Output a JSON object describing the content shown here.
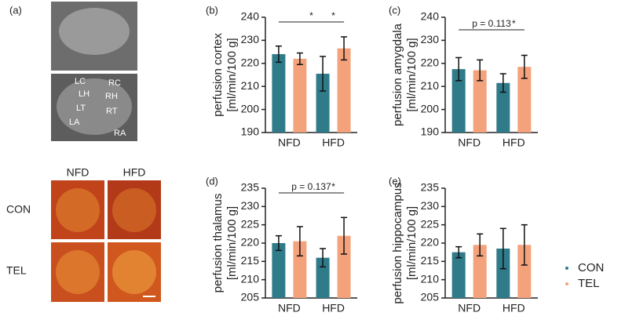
{
  "panel_a": {
    "label": "(a)",
    "regions": [
      "LC",
      "RC",
      "LH",
      "RH",
      "LT",
      "RT",
      "LA",
      "RA"
    ],
    "columns": [
      "NFD",
      "HFD"
    ],
    "rows": [
      "CON",
      "TEL"
    ]
  },
  "chart_data": [
    {
      "type": "bar",
      "label": "(b)",
      "ylabel": [
        "perfusion cortex",
        "[ml/min/100 g]"
      ],
      "categories": [
        "NFD",
        "HFD"
      ],
      "series": [
        {
          "name": "CON",
          "color": "#2f7b8a",
          "values": [
            224,
            215.5
          ],
          "errors": [
            3.5,
            7.5
          ]
        },
        {
          "name": "TEL",
          "color": "#f4a27c",
          "values": [
            222,
            226.5
          ],
          "errors": [
            2.5,
            5
          ]
        }
      ],
      "ylim": [
        190,
        240
      ],
      "yticks": [
        190,
        200,
        210,
        220,
        230,
        240
      ],
      "annotations": [
        "*",
        "*"
      ]
    },
    {
      "type": "bar",
      "label": "(c)",
      "ylabel": [
        "perfusion amygdala",
        "[ml/min/100 g]"
      ],
      "categories": [
        "NFD",
        "HFD"
      ],
      "series": [
        {
          "name": "CON",
          "color": "#2f7b8a",
          "values": [
            217.5,
            211.5
          ],
          "errors": [
            5,
            4
          ]
        },
        {
          "name": "TEL",
          "color": "#f4a27c",
          "values": [
            217,
            218.5
          ],
          "errors": [
            4.5,
            5
          ]
        }
      ],
      "ylim": [
        190,
        240
      ],
      "yticks": [
        190,
        200,
        210,
        220,
        230,
        240
      ],
      "annotations": [
        "p = 0.113",
        "*"
      ]
    },
    {
      "type": "bar",
      "label": "(d)",
      "ylabel": [
        "perfusion thalamus",
        "[ml/min/100 g]"
      ],
      "categories": [
        "NFD",
        "HFD"
      ],
      "series": [
        {
          "name": "CON",
          "color": "#2f7b8a",
          "values": [
            220,
            216
          ],
          "errors": [
            2,
            2.5
          ]
        },
        {
          "name": "TEL",
          "color": "#f4a27c",
          "values": [
            220.5,
            222
          ],
          "errors": [
            4,
            5
          ]
        }
      ],
      "ylim": [
        205,
        235
      ],
      "yticks": [
        205,
        210,
        215,
        220,
        225,
        230,
        235
      ],
      "annotations": [
        "p = 0.137",
        "*"
      ]
    },
    {
      "type": "bar",
      "label": "(e)",
      "ylabel": [
        "perfusion hippocampus",
        "[ml/min/100 g]"
      ],
      "categories": [
        "NFD",
        "HFD"
      ],
      "series": [
        {
          "name": "CON",
          "color": "#2f7b8a",
          "values": [
            217.5,
            218.5
          ],
          "errors": [
            1.5,
            5.5
          ]
        },
        {
          "name": "TEL",
          "color": "#f4a27c",
          "values": [
            219.5,
            219.5
          ],
          "errors": [
            3,
            5.5
          ]
        }
      ],
      "ylim": [
        205,
        235
      ],
      "yticks": [
        205,
        210,
        215,
        220,
        225,
        230,
        235
      ],
      "legend": "right"
    }
  ]
}
